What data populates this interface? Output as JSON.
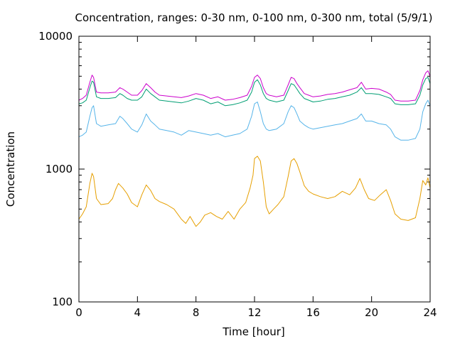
{
  "chart_data": {
    "type": "line",
    "title": "Concentration, ranges: 0-30 nm, 0-100 nm, 0-300 nm, total (5/9/1)",
    "xlabel": "Time [hour]",
    "ylabel": "Concentration",
    "xlim": [
      0,
      24
    ],
    "ylim": [
      100,
      10000
    ],
    "yscale": "log",
    "grid": false,
    "legend": "none",
    "x_ticks": [
      0,
      4,
      8,
      12,
      16,
      20,
      24
    ],
    "y_ticks": [
      100,
      1000,
      10000
    ],
    "x_tick_labels": [
      "0",
      "4",
      "8",
      "12",
      "16",
      "20",
      "24"
    ],
    "y_tick_labels": [
      "100",
      "1000",
      "10000"
    ],
    "series": [
      {
        "color": "#e69f00",
        "x": [
          0,
          0.25,
          0.5,
          0.75,
          0.9,
          1.0,
          1.2,
          1.5,
          2.0,
          2.3,
          2.5,
          2.7,
          3.0,
          3.3,
          3.6,
          4.0,
          4.3,
          4.6,
          4.9,
          5.2,
          5.5,
          6.0,
          6.5,
          7.0,
          7.3,
          7.6,
          8.0,
          8.3,
          8.6,
          9.0,
          9.4,
          9.8,
          10.2,
          10.6,
          11.0,
          11.4,
          11.7,
          11.9,
          12.0,
          12.2,
          12.4,
          12.6,
          12.8,
          13.0,
          13.3,
          13.6,
          14.0,
          14.3,
          14.5,
          14.7,
          14.9,
          15.1,
          15.4,
          15.7,
          16.0,
          16.5,
          17.0,
          17.5,
          18.0,
          18.5,
          18.9,
          19.2,
          19.5,
          19.8,
          20.2,
          20.6,
          21.0,
          21.3,
          21.6,
          22.0,
          22.5,
          23.0,
          23.3,
          23.5,
          23.7,
          23.85,
          24.0
        ],
        "values": [
          420,
          460,
          520,
          780,
          930,
          880,
          600,
          540,
          550,
          600,
          700,
          780,
          720,
          650,
          560,
          520,
          640,
          760,
          690,
          600,
          570,
          540,
          500,
          420,
          390,
          440,
          370,
          400,
          450,
          470,
          440,
          420,
          480,
          420,
          500,
          560,
          720,
          900,
          1200,
          1250,
          1150,
          800,
          520,
          460,
          500,
          540,
          620,
          880,
          1150,
          1200,
          1100,
          950,
          750,
          680,
          650,
          620,
          600,
          620,
          680,
          640,
          720,
          850,
          700,
          600,
          580,
          640,
          700,
          580,
          460,
          420,
          410,
          430,
          600,
          820,
          760,
          860,
          720
        ]
      },
      {
        "color": "#56b4e9",
        "x": [
          0,
          0.25,
          0.5,
          0.75,
          0.9,
          1.0,
          1.2,
          1.5,
          2.0,
          2.5,
          2.8,
          3.0,
          3.3,
          3.6,
          4.0,
          4.3,
          4.6,
          4.9,
          5.2,
          5.5,
          6.0,
          6.5,
          7.0,
          7.5,
          8.0,
          8.5,
          9.0,
          9.5,
          10.0,
          10.5,
          11.0,
          11.5,
          11.8,
          12.0,
          12.2,
          12.4,
          12.6,
          12.8,
          13.0,
          13.5,
          14.0,
          14.3,
          14.5,
          14.7,
          14.9,
          15.1,
          15.4,
          15.7,
          16.0,
          16.5,
          17.0,
          17.5,
          18.0,
          18.5,
          19.0,
          19.3,
          19.6,
          20.0,
          20.5,
          21.0,
          21.3,
          21.6,
          22.0,
          22.5,
          23.0,
          23.3,
          23.5,
          23.7,
          23.85,
          24.0
        ],
        "values": [
          1750,
          1800,
          1900,
          2500,
          2900,
          3000,
          2200,
          2100,
          2150,
          2200,
          2500,
          2400,
          2200,
          2000,
          1900,
          2150,
          2600,
          2300,
          2150,
          2000,
          1950,
          1900,
          1800,
          1950,
          1900,
          1850,
          1800,
          1850,
          1750,
          1800,
          1850,
          2000,
          2500,
          3100,
          3200,
          2700,
          2200,
          2000,
          1950,
          2000,
          2200,
          2700,
          3000,
          2900,
          2600,
          2300,
          2150,
          2050,
          2000,
          2050,
          2100,
          2150,
          2200,
          2300,
          2400,
          2600,
          2300,
          2300,
          2200,
          2150,
          2000,
          1750,
          1650,
          1650,
          1700,
          2000,
          2700,
          3100,
          3300,
          3000
        ]
      },
      {
        "color": "#009e73",
        "x": [
          0,
          0.25,
          0.5,
          0.75,
          0.9,
          1.0,
          1.2,
          1.5,
          2.0,
          2.5,
          2.8,
          3.0,
          3.3,
          3.6,
          4.0,
          4.3,
          4.6,
          4.9,
          5.2,
          5.5,
          6.0,
          6.5,
          7.0,
          7.5,
          8.0,
          8.5,
          9.0,
          9.5,
          10.0,
          10.5,
          11.0,
          11.5,
          11.8,
          12.0,
          12.2,
          12.4,
          12.6,
          12.8,
          13.0,
          13.5,
          14.0,
          14.3,
          14.5,
          14.7,
          14.9,
          15.1,
          15.4,
          15.7,
          16.0,
          16.5,
          17.0,
          17.5,
          18.0,
          18.5,
          19.0,
          19.3,
          19.6,
          20.0,
          20.5,
          21.0,
          21.3,
          21.6,
          22.0,
          22.5,
          23.0,
          23.3,
          23.5,
          23.7,
          23.85,
          24.0
        ],
        "values": [
          3100,
          3150,
          3300,
          4100,
          4600,
          4500,
          3500,
          3400,
          3400,
          3450,
          3700,
          3600,
          3400,
          3300,
          3300,
          3500,
          4000,
          3700,
          3500,
          3300,
          3250,
          3200,
          3150,
          3250,
          3400,
          3300,
          3100,
          3200,
          3000,
          3050,
          3150,
          3300,
          3800,
          4500,
          4700,
          4300,
          3700,
          3400,
          3300,
          3200,
          3300,
          3900,
          4400,
          4300,
          4000,
          3700,
          3400,
          3300,
          3200,
          3250,
          3350,
          3400,
          3500,
          3600,
          3800,
          4100,
          3700,
          3700,
          3650,
          3500,
          3400,
          3100,
          3050,
          3050,
          3100,
          3600,
          4300,
          4800,
          4900,
          4400
        ]
      },
      {
        "color": "#cc00cc",
        "x": [
          0,
          0.25,
          0.5,
          0.75,
          0.9,
          1.0,
          1.2,
          1.5,
          2.0,
          2.5,
          2.8,
          3.0,
          3.3,
          3.6,
          4.0,
          4.3,
          4.6,
          4.9,
          5.2,
          5.5,
          6.0,
          6.5,
          7.0,
          7.5,
          8.0,
          8.5,
          9.0,
          9.5,
          10.0,
          10.5,
          11.0,
          11.5,
          11.8,
          12.0,
          12.2,
          12.4,
          12.6,
          12.8,
          13.0,
          13.5,
          14.0,
          14.3,
          14.5,
          14.7,
          14.9,
          15.1,
          15.4,
          15.7,
          16.0,
          16.5,
          17.0,
          17.5,
          18.0,
          18.5,
          19.0,
          19.3,
          19.6,
          20.0,
          20.5,
          21.0,
          21.3,
          21.6,
          22.0,
          22.5,
          23.0,
          23.3,
          23.5,
          23.7,
          23.85,
          24.0
        ],
        "values": [
          3300,
          3400,
          3600,
          4500,
          5100,
          4900,
          3800,
          3750,
          3750,
          3800,
          4100,
          4000,
          3800,
          3600,
          3600,
          3900,
          4400,
          4100,
          3800,
          3600,
          3550,
          3500,
          3450,
          3550,
          3700,
          3600,
          3400,
          3500,
          3300,
          3350,
          3450,
          3600,
          4200,
          4900,
          5100,
          4800,
          4100,
          3700,
          3600,
          3500,
          3600,
          4300,
          4900,
          4800,
          4400,
          4100,
          3700,
          3600,
          3500,
          3550,
          3650,
          3700,
          3800,
          3950,
          4100,
          4500,
          4000,
          4050,
          4000,
          3800,
          3650,
          3300,
          3250,
          3250,
          3300,
          3900,
          4700,
          5300,
          5500,
          5000
        ]
      }
    ]
  }
}
